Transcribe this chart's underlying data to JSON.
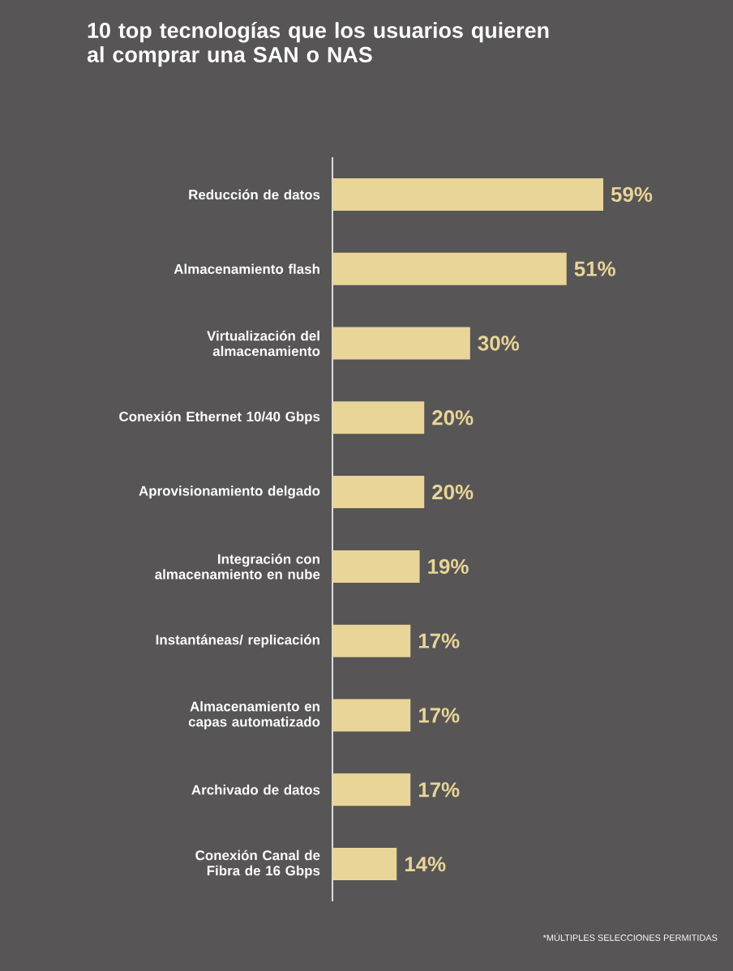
{
  "chart_data": {
    "type": "bar",
    "orientation": "horizontal",
    "title": "10 top tecnologías que los usuarios quieren al comprar una SAN o NAS",
    "categories": [
      "Reducción de datos",
      "Almacenamiento flash",
      "Virtualización del almacenamiento",
      "Conexión Ethernet 10/40 Gbps",
      "Aprovisionamiento delgado",
      "Integración con almacenamiento en nube",
      "Instantáneas/ replicación",
      "Almacenamiento en capas automatizado",
      "Archivado de datos",
      "Conexión Canal de Fibra de 16 Gbps"
    ],
    "values": [
      59,
      51,
      30,
      20,
      20,
      19,
      17,
      17,
      17,
      14
    ],
    "value_labels": [
      "59%",
      "51%",
      "30%",
      "20%",
      "20%",
      "19%",
      "17%",
      "17%",
      "17%",
      "14%"
    ],
    "color": "#e8d597",
    "annotations": [
      "*MÚLTIPLES SELECCIONES PERMITIDAS"
    ]
  }
}
